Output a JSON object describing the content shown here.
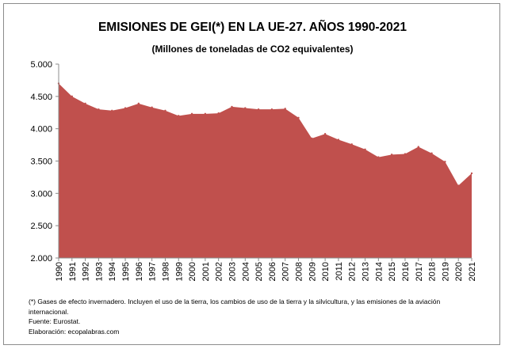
{
  "chart_data": {
    "type": "area",
    "title": "EMISIONES DE GEI(*) EN LA UE-27. AÑOS 1990-2021",
    "subtitle": "(Millones de toneladas de CO2 equivalentes)",
    "x": [
      1990,
      1991,
      1992,
      1993,
      1994,
      1995,
      1996,
      1997,
      1998,
      1999,
      2000,
      2001,
      2002,
      2003,
      2004,
      2005,
      2006,
      2007,
      2008,
      2009,
      2010,
      2011,
      2012,
      2013,
      2014,
      2015,
      2016,
      2017,
      2018,
      2019,
      2020,
      2021
    ],
    "values": [
      4700,
      4500,
      4390,
      4300,
      4280,
      4320,
      4390,
      4330,
      4280,
      4200,
      4230,
      4230,
      4240,
      4340,
      4320,
      4300,
      4300,
      4310,
      4170,
      3850,
      3920,
      3830,
      3760,
      3680,
      3560,
      3600,
      3610,
      3720,
      3620,
      3490,
      3120,
      3310
    ],
    "yticks": [
      "5.000",
      "4.500",
      "4.000",
      "3.500",
      "3.000",
      "2.500",
      "2.000"
    ],
    "ytick_values": [
      5000,
      4500,
      4000,
      3500,
      3000,
      2500,
      2000
    ],
    "ylim": [
      2000,
      5000
    ],
    "grid": false,
    "legend": "none",
    "area_color": "#c0504d"
  },
  "notes": {
    "line1": "(*) Gases de efecto invernadero. Incluyen el uso de la tierra, los cambios de uso de la tierra y la silvicultura, y  las emisiones de la aviación internacional.",
    "line2": "Fuente: Eurostat.",
    "line3": "Elaboración: ecopalabras.com"
  }
}
